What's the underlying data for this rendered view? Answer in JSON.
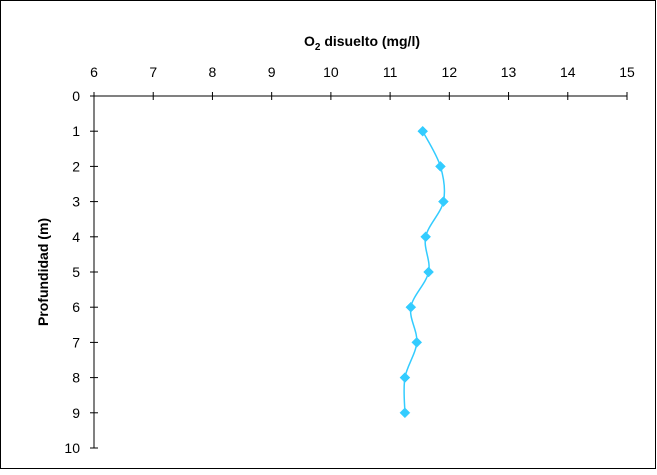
{
  "chart_data": {
    "type": "line",
    "title": "",
    "xlabel": "O2 disuelto (mg/l)",
    "xlabel_main": "O",
    "xlabel_sub": "2",
    "xlabel_rest": " disuelto (mg/l)",
    "ylabel": "Profundidad (m)",
    "xlim": [
      6,
      15
    ],
    "ylim": [
      0,
      10
    ],
    "y_inverted": true,
    "x_axis_position": "top",
    "x_ticks": [
      6,
      7,
      8,
      9,
      10,
      11,
      12,
      13,
      14,
      15
    ],
    "y_ticks": [
      0,
      1,
      2,
      3,
      4,
      5,
      6,
      7,
      8,
      9,
      10
    ],
    "grid": false,
    "legend": "none",
    "series": [
      {
        "color": "#33ccff",
        "marker": "diamond",
        "points": [
          {
            "x": 11.55,
            "y": 1
          },
          {
            "x": 11.85,
            "y": 2
          },
          {
            "x": 11.9,
            "y": 3
          },
          {
            "x": 11.6,
            "y": 4
          },
          {
            "x": 11.65,
            "y": 5
          },
          {
            "x": 11.35,
            "y": 6
          },
          {
            "x": 11.45,
            "y": 7
          },
          {
            "x": 11.25,
            "y": 8
          },
          {
            "x": 11.25,
            "y": 9
          }
        ]
      }
    ]
  }
}
